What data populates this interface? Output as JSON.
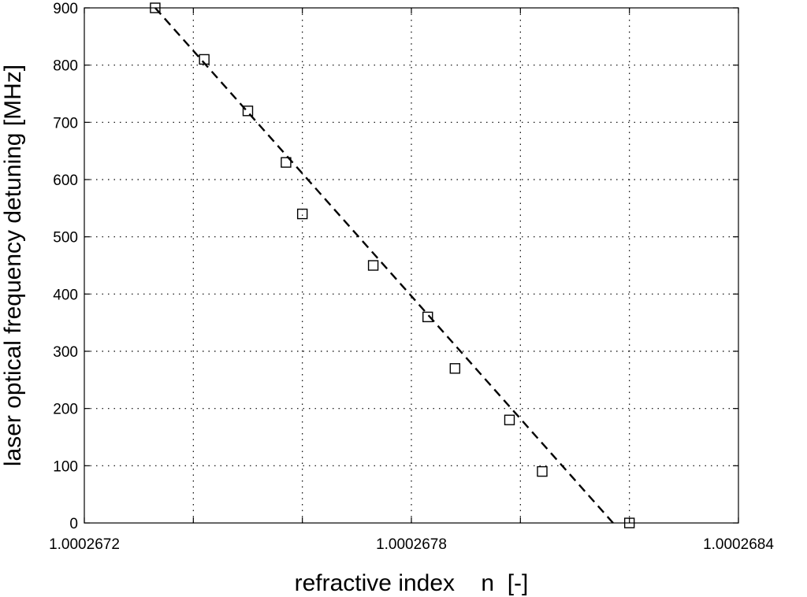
{
  "chart_data": {
    "type": "scatter",
    "xlabel": "refractive index    n  [-]",
    "ylabel": "laser optical frequency detuning [MHz]",
    "xlim": [
      1.0002672,
      1.0002684
    ],
    "ylim": [
      0,
      900
    ],
    "x_ticks_labeled": [
      "1.0002672",
      "1.0002678",
      "1.0002684"
    ],
    "x_tick_values": [
      1.0002672,
      1.0002674,
      1.0002676,
      1.0002678,
      1.000268,
      1.0002682,
      1.0002684
    ],
    "x_tick_labels": [
      "1.0002672",
      "",
      "",
      "1.0002678",
      "",
      "",
      "1.0002684"
    ],
    "y_ticks": [
      0,
      100,
      200,
      300,
      400,
      500,
      600,
      700,
      800,
      900
    ],
    "y_tick_labels": [
      "0",
      "100",
      "200",
      "300",
      "400",
      "500",
      "600",
      "700",
      "800",
      "900"
    ],
    "grid": true,
    "series": [
      {
        "marker": "square",
        "points": [
          {
            "x": 1.00026733,
            "y": 900
          },
          {
            "x": 1.00026742,
            "y": 810
          },
          {
            "x": 1.0002675,
            "y": 720
          },
          {
            "x": 1.00026757,
            "y": 630
          },
          {
            "x": 1.0002676,
            "y": 540
          },
          {
            "x": 1.00026773,
            "y": 450
          },
          {
            "x": 1.00026783,
            "y": 360
          },
          {
            "x": 1.00026788,
            "y": 270
          },
          {
            "x": 1.00026798,
            "y": 180
          },
          {
            "x": 1.00026804,
            "y": 90
          },
          {
            "x": 1.0002682,
            "y": 0
          }
        ]
      },
      {
        "style": "dashed-line",
        "points": [
          {
            "x": 1.00026733,
            "y": 900
          },
          {
            "x": 1.00026817,
            "y": 0
          }
        ]
      }
    ]
  }
}
